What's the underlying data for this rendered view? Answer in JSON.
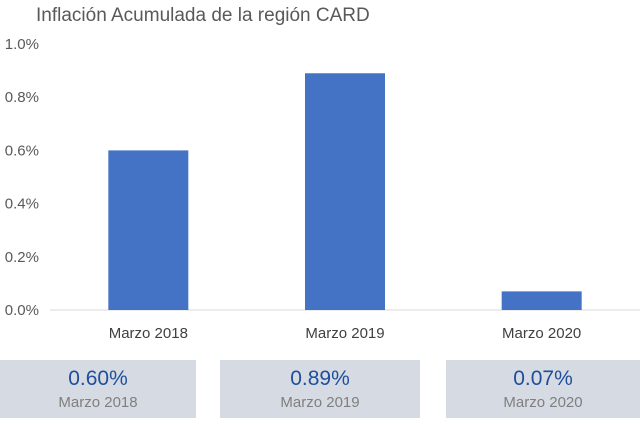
{
  "chart_data": {
    "type": "bar",
    "title": "Inflación Acumulada de la región CARD",
    "categories": [
      "Marzo 2018",
      "Marzo 2019",
      "Marzo 2020"
    ],
    "values": [
      0.6,
      0.89,
      0.07
    ],
    "unit": "%",
    "ylim": [
      0,
      1.0
    ],
    "yticks": [
      "0.0%",
      "0.2%",
      "0.4%",
      "0.6%",
      "0.8%",
      "1.0%"
    ],
    "bar_color": "#4472c4",
    "grid": false,
    "legend": "none"
  },
  "summary_cards": [
    {
      "value": "0.60%",
      "label": "Marzo 2018"
    },
    {
      "value": "0.89%",
      "label": "Marzo 2019"
    },
    {
      "value": "0.07%",
      "label": "Marzo 2020"
    }
  ],
  "colors": {
    "bar": "#4472c4",
    "card_background": "#d6dbe3",
    "card_value": "#1f4e9c"
  }
}
